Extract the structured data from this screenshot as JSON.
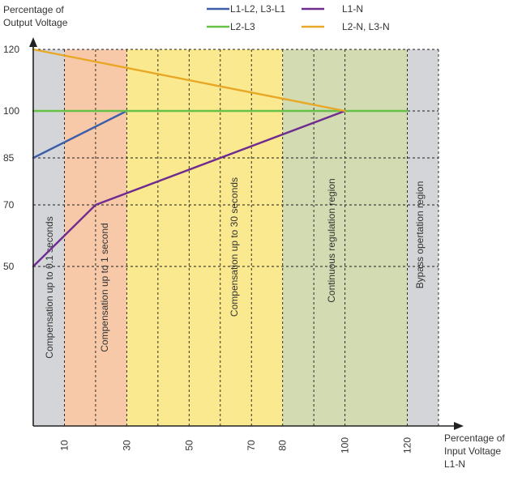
{
  "chart_data": {
    "type": "line",
    "ylabel": [
      "Percentage of",
      "Output Voltage"
    ],
    "xlabel": [
      "Percentage of",
      "Input Voltage",
      "L1-N"
    ],
    "x_ticks": [
      10,
      30,
      50,
      70,
      80,
      100,
      120
    ],
    "y_ticks": [
      50,
      70,
      85,
      100,
      120
    ],
    "grid_x": [
      0,
      10,
      20,
      30,
      40,
      50,
      60,
      70,
      80,
      90,
      100,
      120,
      130
    ],
    "grid_y": [
      50,
      70,
      85,
      100,
      120
    ],
    "regions": [
      {
        "x0": 0,
        "x1": 10,
        "color": "#d3d5d8",
        "label": "Compensation up to 0.1 seconds"
      },
      {
        "x0": 10,
        "x1": 30,
        "color": "#f7c9a9",
        "label": "Compensation up to 1 second"
      },
      {
        "x0": 30,
        "x1": 80,
        "color": "#fbe98f",
        "label": "Compensation up to 30 seconds"
      },
      {
        "x0": 80,
        "x1": 120,
        "color": "#d2dbb2",
        "label": "Continuous regulation region"
      },
      {
        "x0": 120,
        "x1": 130,
        "color": "#d3d5d8",
        "label": "Bypass opertation region"
      }
    ],
    "series": [
      {
        "name": "L1-L2, L3-L1",
        "color": "#3d5ea8",
        "x": [
          0,
          30
        ],
        "y": [
          85,
          100
        ]
      },
      {
        "name": "L2-L3",
        "color": "#66c247",
        "x": [
          0,
          120
        ],
        "y": [
          100,
          100
        ]
      },
      {
        "name": "L1-N",
        "color": "#6f2c8f",
        "x": [
          0,
          20,
          100
        ],
        "y": [
          50,
          70,
          100
        ]
      },
      {
        "name": "L2-N, L3-N",
        "color": "#e8a826",
        "x": [
          0,
          100
        ],
        "y": [
          120,
          100
        ]
      }
    ]
  }
}
